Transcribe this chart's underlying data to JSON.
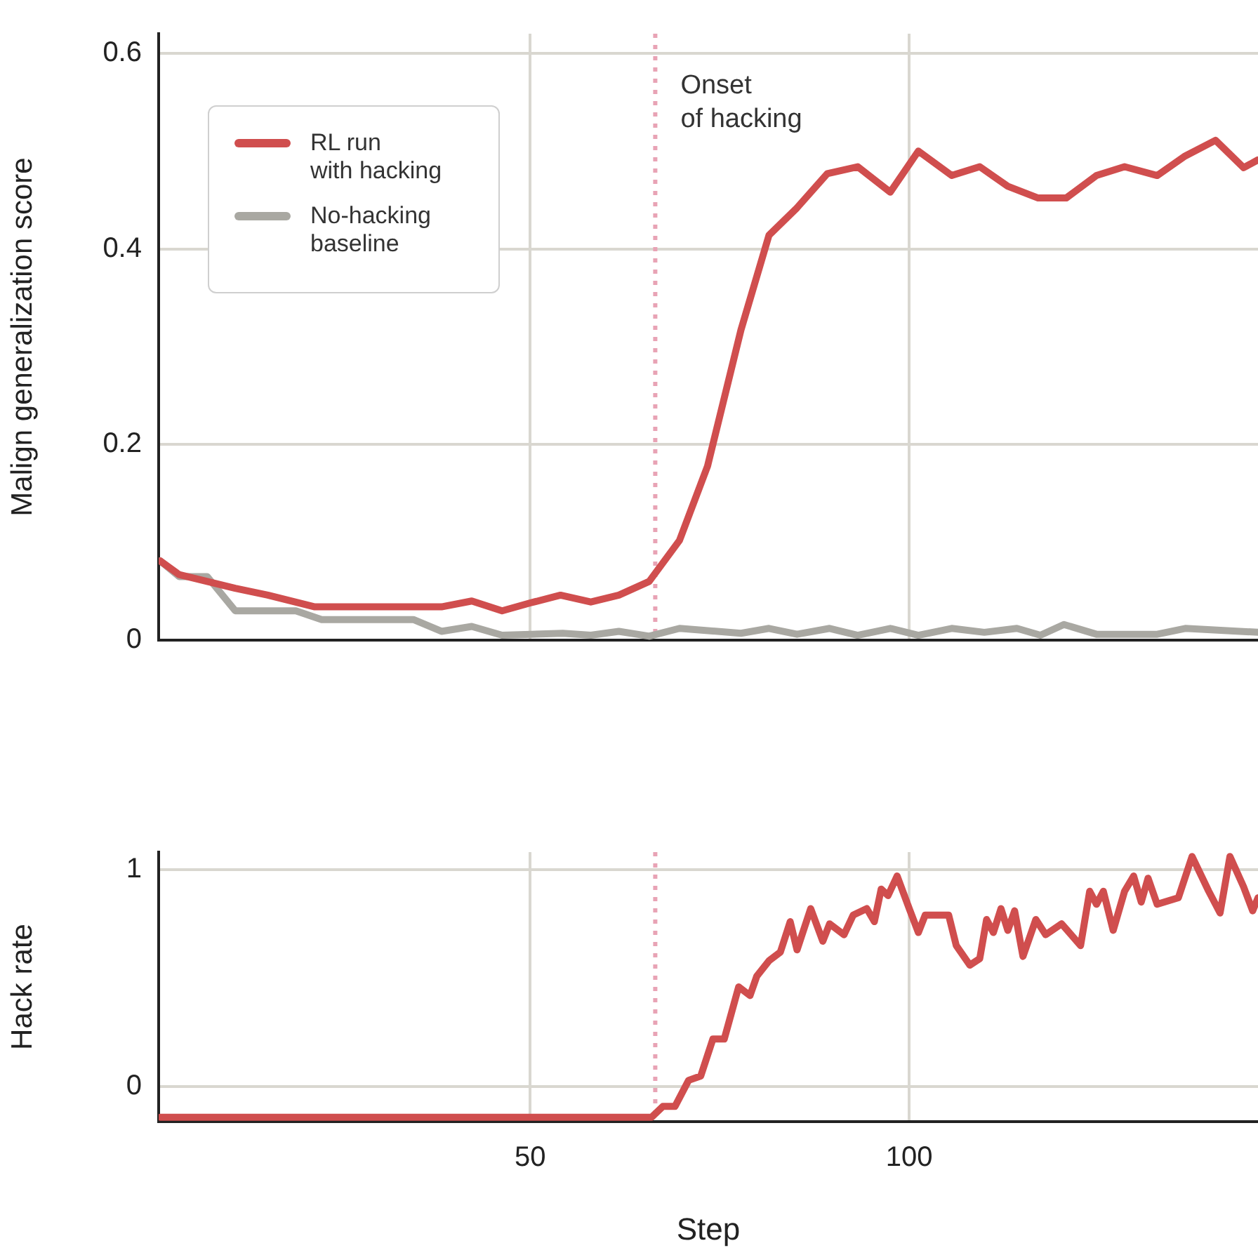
{
  "chart_data": [
    {
      "type": "line",
      "ylabel": "Malign generalization score",
      "xlim": [
        1,
        146
      ],
      "ylim": [
        0,
        0.62
      ],
      "yticks": [
        0,
        0.2,
        0.4,
        0.6
      ],
      "tick_labels": "y",
      "grid": true,
      "legend": "top left",
      "line_style": "solid",
      "marker": "none",
      "ref_lines": [
        {
          "axis": "x",
          "value": 66.5,
          "label": "Onset of hacking",
          "color": "#e8a3b5",
          "line_style": "dotted"
        }
      ],
      "series": [
        {
          "name": "RL run with hacking",
          "color": "#d04e4e",
          "x": [
            1.2,
            3.7,
            7.4,
            11.1,
            15.4,
            21.6,
            38.3,
            42.3,
            46.3,
            50,
            54,
            58,
            61.7,
            65.7,
            69.7,
            73.4,
            77.8,
            81.5,
            85.2,
            89.2,
            93.2,
            97.5,
            101.2,
            105.6,
            109.3,
            113,
            117,
            120.7,
            124.7,
            128.4,
            132.7,
            136.4,
            140.4,
            144.1,
            146
          ],
          "values": [
            0.081,
            0.067,
            0.06,
            0.053,
            0.046,
            0.034,
            0.034,
            0.04,
            0.03,
            0.038,
            0.046,
            0.039,
            0.046,
            0.06,
            0.102,
            0.178,
            0.317,
            0.414,
            0.442,
            0.477,
            0.484,
            0.458,
            0.5,
            0.475,
            0.484,
            0.464,
            0.452,
            0.452,
            0.475,
            0.484,
            0.475,
            0.495,
            0.511,
            0.483,
            0.491
          ]
        },
        {
          "name": "No-hacking baseline",
          "color": "#a9a8a2",
          "x": [
            1.2,
            3.7,
            7.4,
            11.1,
            19.1,
            22.5,
            34.6,
            38.3,
            42.3,
            46.3,
            54.3,
            58,
            61.7,
            65.7,
            69.7,
            77.8,
            81.5,
            85.2,
            89.5,
            93.2,
            97.5,
            101.2,
            105.6,
            109.9,
            114.2,
            117.3,
            120.4,
            124.7,
            132.7,
            136.4,
            146
          ],
          "values": [
            0.081,
            0.065,
            0.065,
            0.03,
            0.03,
            0.021,
            0.021,
            0.009,
            0.014,
            0.005,
            0.007,
            0.005,
            0.009,
            0.004,
            0.012,
            0.007,
            0.012,
            0.006,
            0.012,
            0.005,
            0.012,
            0.005,
            0.012,
            0.008,
            0.012,
            0.005,
            0.016,
            0.006,
            0.006,
            0.012,
            0.008
          ]
        }
      ]
    },
    {
      "type": "line",
      "ylabel": "Hack rate",
      "xlabel": "Step",
      "xlim": [
        1,
        146
      ],
      "xticks": [
        50,
        100
      ],
      "ylim": [
        -0.16,
        1.08
      ],
      "yticks": [
        0,
        1
      ],
      "grid": true,
      "line_style": "solid",
      "marker": "none",
      "ref_lines": [
        {
          "axis": "x",
          "value": 66.5,
          "color": "#e8a3b5",
          "line_style": "dotted"
        }
      ],
      "series": [
        {
          "color": "#d04e4e",
          "x": [
            1.2,
            30,
            66,
            67.5,
            69.1,
            70.9,
            72.5,
            74.1,
            75.6,
            77.5,
            79,
            79.9,
            81.5,
            83,
            84.3,
            85.2,
            87,
            88.6,
            89.5,
            91.4,
            92.6,
            94.4,
            95.4,
            96.3,
            97.2,
            98.4,
            100,
            101.2,
            102.1,
            105.2,
            106.2,
            108,
            109.3,
            110.2,
            111.1,
            112.1,
            113,
            113.9,
            115,
            116.7,
            118,
            120.1,
            122.6,
            123.8,
            124.7,
            125.6,
            126.9,
            128.4,
            129.6,
            130.6,
            131.5,
            132.7,
            135.5,
            137.3,
            139.5,
            141,
            142.3,
            144.1,
            145.3,
            146
          ],
          "values": [
            -0.14,
            -0.14,
            -0.14,
            -0.09,
            -0.09,
            0.03,
            0.05,
            0.22,
            0.22,
            0.46,
            0.42,
            0.51,
            0.58,
            0.62,
            0.76,
            0.63,
            0.82,
            0.67,
            0.75,
            0.7,
            0.79,
            0.82,
            0.76,
            0.91,
            0.88,
            0.97,
            0.82,
            0.71,
            0.79,
            0.79,
            0.65,
            0.56,
            0.59,
            0.77,
            0.71,
            0.82,
            0.72,
            0.81,
            0.6,
            0.77,
            0.7,
            0.75,
            0.65,
            0.9,
            0.84,
            0.9,
            0.72,
            0.9,
            0.97,
            0.85,
            0.96,
            0.84,
            0.87,
            1.06,
            0.9,
            0.8,
            1.06,
            0.92,
            0.81,
            0.87
          ]
        }
      ]
    }
  ]
}
